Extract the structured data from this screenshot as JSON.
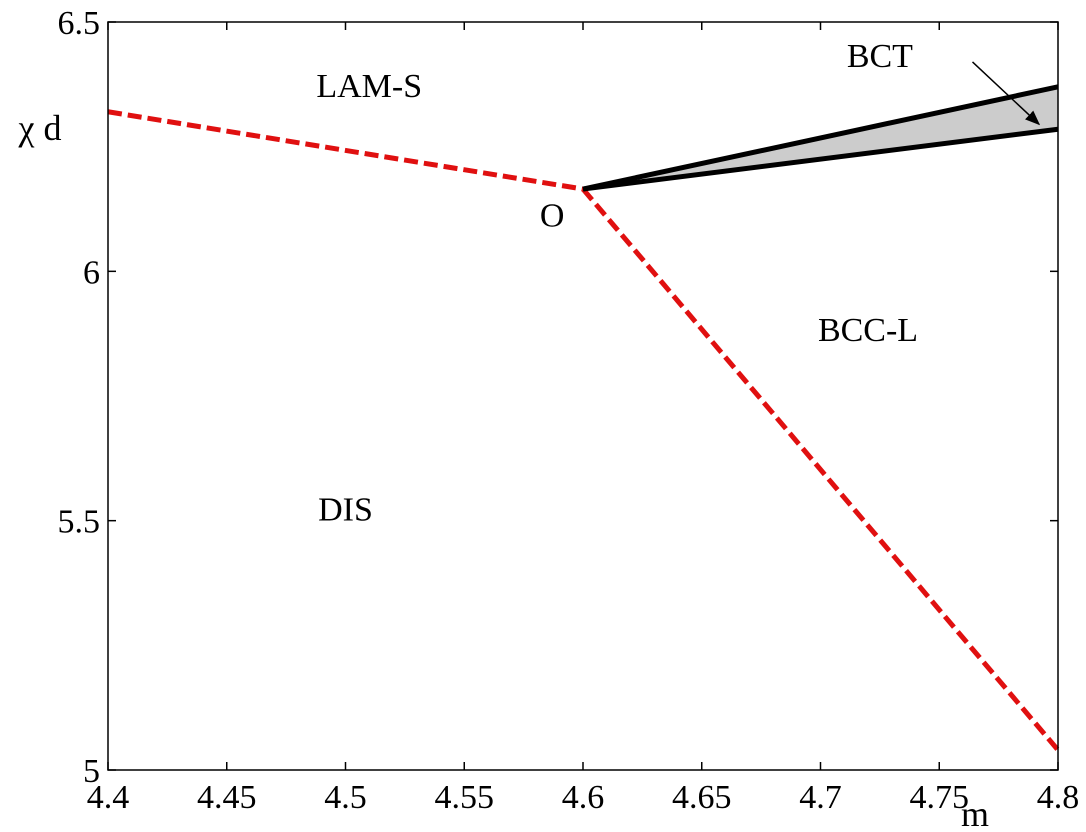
{
  "chart_data": {
    "type": "line",
    "title": "",
    "xlabel": "m",
    "ylabel": "χ d",
    "xlim": [
      4.4,
      4.8
    ],
    "ylim": [
      5.0,
      6.5
    ],
    "xticks": [
      "4.4",
      "4.45",
      "4.5",
      "4.55",
      "4.6",
      "4.65",
      "4.7",
      "4.75",
      "4.8"
    ],
    "yticks": [
      "5",
      "5.5",
      "6",
      "6.5"
    ],
    "grid": false,
    "colors": {
      "dashed": "#e01010",
      "solid": "#000000",
      "fill": "#cccccc"
    },
    "series": [
      {
        "style": "dashed",
        "color": "red",
        "x": [
          4.4,
          4.6
        ],
        "y": [
          6.32,
          6.165
        ]
      },
      {
        "style": "dashed",
        "color": "red",
        "x": [
          4.6,
          4.8
        ],
        "y": [
          6.165,
          5.04
        ]
      },
      {
        "style": "solid",
        "color": "black",
        "x": [
          4.6,
          4.8
        ],
        "y": [
          6.165,
          6.37
        ]
      },
      {
        "style": "solid",
        "color": "black",
        "x": [
          4.6,
          4.8
        ],
        "y": [
          6.165,
          6.285
        ]
      }
    ],
    "shaded_region": {
      "between": [
        2,
        3
      ],
      "color": "gray"
    },
    "annotations": [
      {
        "text": "LAM-S",
        "x": 4.51,
        "y": 6.35
      },
      {
        "text": "BCT",
        "x": 4.725,
        "y": 6.41
      },
      {
        "text": "O",
        "x": 4.587,
        "y": 6.09
      },
      {
        "text": "BCC-L",
        "x": 4.72,
        "y": 5.86
      },
      {
        "text": "DIS",
        "x": 4.5,
        "y": 5.5
      }
    ],
    "arrow": {
      "from": [
        4.764,
        6.42
      ],
      "to": [
        4.792,
        6.295
      ]
    }
  }
}
